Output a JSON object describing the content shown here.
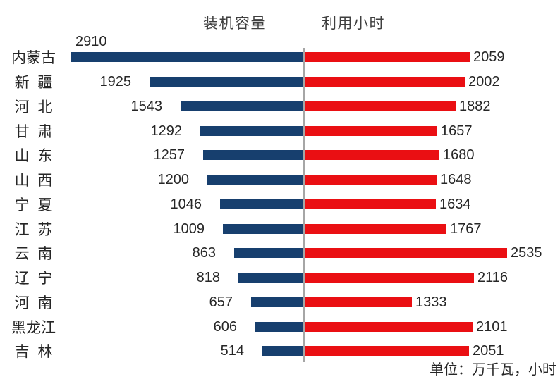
{
  "chart_data": {
    "type": "bar",
    "variant": "diverging-horizontal",
    "title": "",
    "categories": [
      "内蒙古",
      "新 疆",
      "河 北",
      "甘 肃",
      "山 东",
      "山 西",
      "宁 夏",
      "江 苏",
      "云 南",
      "辽 宁",
      "河 南",
      "黑龙江",
      "吉 林"
    ],
    "series": [
      {
        "name": "装机容量",
        "side": "left",
        "color": "#173f6e",
        "values": [
          2910,
          1925,
          1543,
          1292,
          1257,
          1200,
          1046,
          1009,
          863,
          818,
          657,
          606,
          514
        ]
      },
      {
        "name": "利用小时",
        "side": "right",
        "color": "#ea0f13",
        "values": [
          2059,
          2002,
          1882,
          1657,
          1680,
          1648,
          1634,
          1767,
          2535,
          2116,
          1333,
          2101,
          2051
        ]
      }
    ],
    "unit_note": "单位：万千瓦，小时",
    "legend_position": "top",
    "grid": false,
    "divider_color": "#a6a6a6",
    "text_color": "#262626",
    "header_color": "#3f3f3f",
    "xlim_left": [
      0,
      2965
    ],
    "xlim_right": [
      0,
      3195
    ]
  }
}
